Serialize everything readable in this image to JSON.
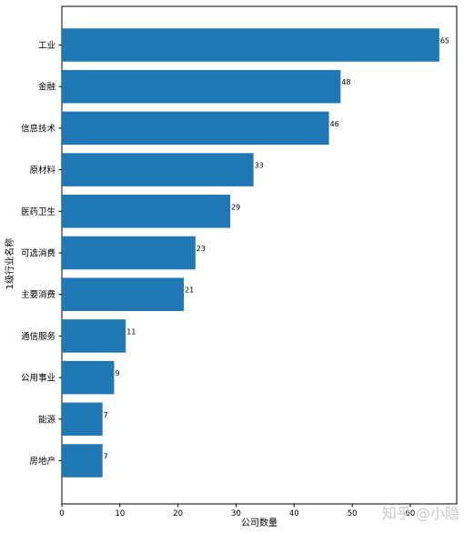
{
  "chart_data": {
    "type": "bar",
    "orientation": "horizontal",
    "categories": [
      "工业",
      "金融",
      "信息技术",
      "原材料",
      "医药卫生",
      "可选消费",
      "主要消费",
      "通信服务",
      "公用事业",
      "能源",
      "房地产"
    ],
    "values": [
      65,
      48,
      46,
      33,
      29,
      23,
      21,
      11,
      9,
      7,
      7
    ],
    "xlabel": "公司数量",
    "ylabel": "1级行业名称",
    "xlim": [
      0,
      68
    ],
    "xticks": [
      0,
      10,
      20,
      30,
      40,
      50,
      60
    ],
    "grid": false,
    "bar_color": "#1f77b4"
  },
  "watermark": "知乎 @小隐"
}
